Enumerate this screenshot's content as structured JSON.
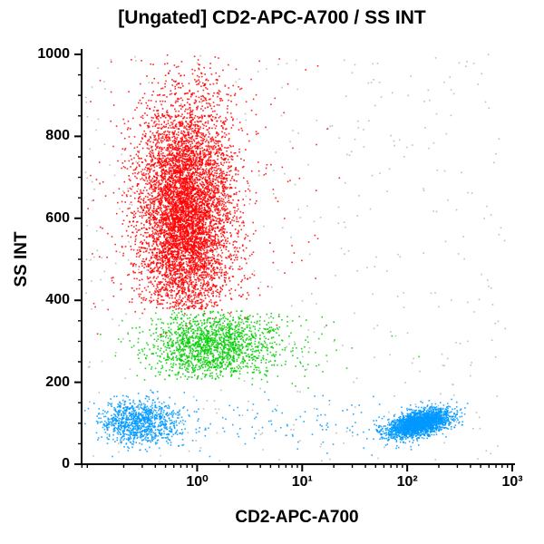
{
  "chart_data": {
    "type": "scatter",
    "title": "[Ungated] CD2-APC-A700 / SS INT",
    "xlabel": "CD2-APC-A700",
    "ylabel": "SS INT",
    "x_scale": "log",
    "x_range_log10": [
      -1.1,
      3
    ],
    "ylim": [
      0,
      1000
    ],
    "grid": false,
    "legend": "none",
    "x_ticks": [
      {
        "log10": 0,
        "label": "10⁰"
      },
      {
        "log10": 1,
        "label": "10¹"
      },
      {
        "log10": 2,
        "label": "10²"
      },
      {
        "log10": 3,
        "label": "10³"
      }
    ],
    "y_ticks": [
      {
        "value": 0,
        "label": "0"
      },
      {
        "value": 200,
        "label": "200"
      },
      {
        "value": 400,
        "label": "400"
      },
      {
        "value": 600,
        "label": "600"
      },
      {
        "value": 800,
        "label": "800"
      },
      {
        "value": 1000,
        "label": "1000"
      }
    ],
    "colors": {
      "red": "#ff0000",
      "green": "#00cc00",
      "blue": "#0099ff",
      "gray": "#b5b5b5",
      "axis": "#000000"
    },
    "clusters": [
      {
        "name": "gray-debris",
        "color": "gray",
        "n": 450,
        "x": {
          "dist": "uniform",
          "min": -1.08,
          "max": 2.95
        },
        "y": {
          "dist": "uniform",
          "min": 5,
          "max": 1000
        }
      },
      {
        "name": "red-sparse",
        "color": "red",
        "n": 420,
        "x": {
          "dist": "gauss",
          "mean": -0.05,
          "sd": 0.55
        },
        "y": {
          "dist": "gauss",
          "mean": 640,
          "sd": 200
        },
        "y_clip": [
          310,
          1000
        ]
      },
      {
        "name": "red-dense",
        "color": "red",
        "n": 6500,
        "x": {
          "dist": "gauss",
          "mean": -0.11,
          "sd": 0.22
        },
        "y": {
          "dist": "gauss",
          "mean": 615,
          "sd": 135
        },
        "y_clip": [
          378,
          1000
        ]
      },
      {
        "name": "green-sparse",
        "color": "green",
        "n": 120,
        "x": {
          "dist": "gauss",
          "mean": 0.55,
          "sd": 0.55
        },
        "y": {
          "dist": "gauss",
          "mean": 285,
          "sd": 55
        },
        "y_clip": [
          180,
          380
        ]
      },
      {
        "name": "green-dense",
        "color": "green",
        "n": 1600,
        "x": {
          "dist": "gauss",
          "mean": 0.15,
          "sd": 0.3
        },
        "y": {
          "dist": "gauss",
          "mean": 290,
          "sd": 45
        },
        "y_clip": [
          205,
          375
        ]
      },
      {
        "name": "blue-left",
        "color": "blue",
        "n": 1000,
        "x": {
          "dist": "gauss",
          "mean": -0.55,
          "sd": 0.19
        },
        "y": {
          "dist": "gauss",
          "mean": 103,
          "sd": 27
        },
        "y_clip": [
          15,
          195
        ]
      },
      {
        "name": "blue-mid-sparse",
        "color": "blue",
        "n": 120,
        "x": {
          "dist": "uniform",
          "min": -0.3,
          "max": 1.9
        },
        "y": {
          "dist": "gauss",
          "mean": 100,
          "sd": 35
        },
        "y_clip": [
          15,
          200
        ]
      },
      {
        "name": "blue-right",
        "color": "blue",
        "n": 2300,
        "x": {
          "dist": "gauss",
          "mean": 2.12,
          "sd": 0.15
        },
        "y": {
          "dist": "gauss",
          "mean": 100,
          "sd": 15
        },
        "y_slope_per_decade": 55,
        "y_clip": [
          25,
          200
        ]
      }
    ]
  }
}
